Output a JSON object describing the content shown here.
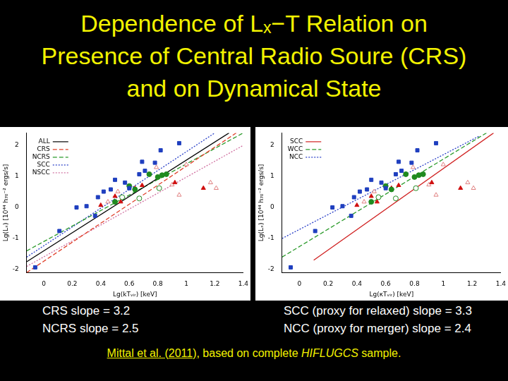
{
  "title": [
    "Dependence of Lₓ−T Relation on",
    "Presence of Central Radio Soure (CRS)",
    "and on Dynamical State"
  ],
  "chart_data": [
    {
      "type": "scatter",
      "x_label": "Lg(kTᵥᵢᵣ) [keV]",
      "y_label": "Lg(Lₓ) [10⁴⁴ h₇₀⁻² ergs/s]",
      "xlim": [
        -0.12,
        1.4
      ],
      "ylim": [
        -2.1,
        2.4
      ],
      "xticks": [
        0,
        0.2,
        0.4,
        0.6,
        0.8,
        1,
        1.2,
        1.4
      ],
      "yticks": [
        -2,
        -1,
        0,
        1,
        2
      ],
      "grid": false,
      "legend": "top-left",
      "series": [
        {
          "name": "ALL",
          "type": "line",
          "color": "#000000",
          "line_style": "solid",
          "x": [
            -0.12,
            1.3
          ],
          "values": [
            -1.75,
            2.4
          ]
        },
        {
          "name": "CRS",
          "type": "line",
          "color": "#e0402a",
          "line_style": "dashed",
          "x": [
            -0.12,
            1.35
          ],
          "values": [
            -2.1,
            2.4
          ]
        },
        {
          "name": "NCRS",
          "type": "line",
          "color": "#2a9a2a",
          "line_style": "dashed",
          "x": [
            -0.12,
            1.4
          ],
          "values": [
            -1.4,
            2.4
          ]
        },
        {
          "name": "SCC",
          "type": "line",
          "color": "#2a40c8",
          "line_style": "dotted",
          "x": [
            -0.12,
            1.2
          ],
          "values": [
            -1.6,
            2.4
          ]
        },
        {
          "name": "NSCC",
          "type": "line",
          "color": "#d070a0",
          "line_style": "dotted",
          "x": [
            -0.12,
            1.4
          ],
          "values": [
            -1.9,
            2.0
          ]
        },
        {
          "type": "scatter",
          "color": "#1f3fbf",
          "marker": "square",
          "x": [
            -0.06,
            0.11,
            0.23,
            0.3,
            0.36,
            0.38,
            0.42,
            0.47,
            0.5,
            0.57,
            0.6,
            0.67,
            0.69,
            0.71,
            0.78,
            0.82,
            0.95
          ],
          "values": [
            -1.93,
            -0.76,
            0.0,
            0.04,
            -0.27,
            0.33,
            0.51,
            0.58,
            0.89,
            0.8,
            0.62,
            1.07,
            1.47,
            1.18,
            1.44,
            1.84,
            2.07
          ]
        },
        {
          "type": "scatter",
          "color": "#1f8a1f",
          "marker": "circle",
          "x": [
            0.5,
            0.6,
            0.64,
            0.74,
            0.8,
            0.83,
            0.86
          ],
          "values": [
            0.18,
            0.69,
            0.58,
            1.07,
            0.98,
            1.04,
            1.07
          ]
        },
        {
          "type": "scatter",
          "color": "#1f8a1f",
          "marker": "open-circle",
          "x": [
            0.55,
            0.67,
            0.81
          ],
          "values": [
            0.33,
            0.29,
            0.62
          ]
        },
        {
          "type": "scatter",
          "color": "#d01010",
          "marker": "triangle",
          "x": [
            0.4,
            0.5,
            0.54,
            0.64,
            0.69,
            0.92,
            1.12
          ],
          "values": [
            0.07,
            0.36,
            0.18,
            0.62,
            0.71,
            0.8,
            0.62
          ]
        },
        {
          "type": "scatter",
          "color": "#e08080",
          "marker": "open-triangle",
          "x": [
            0.45,
            0.52,
            0.79,
            0.9,
            0.95,
            1.0,
            1.21,
            1.17
          ],
          "values": [
            0.18,
            0.51,
            1.29,
            0.73,
            0.4,
            1.38,
            0.62,
            0.8
          ]
        }
      ]
    },
    {
      "type": "scatter",
      "x_label": "Lg(κTᵥᵢᵣ) [keV]",
      "y_label": "Lg(Lₓ) [10⁴⁴ h₇₀⁻² ergs/s]",
      "xlim": [
        -0.12,
        1.4
      ],
      "ylim": [
        -2.1,
        2.4
      ],
      "xticks": [
        0,
        0.2,
        0.4,
        0.6,
        0.8,
        1,
        1.2,
        1.4
      ],
      "yticks": [
        -2,
        -1,
        0,
        1,
        2
      ],
      "grid": false,
      "legend": "top-left",
      "series": [
        {
          "name": "SCC",
          "type": "line",
          "color": "#d02020",
          "line_style": "solid",
          "x": [
            0.1,
            1.35
          ],
          "values": [
            -1.7,
            2.4
          ]
        },
        {
          "name": "WCC",
          "type": "line",
          "color": "#2a9a2a",
          "line_style": "dashed",
          "x": [
            -0.12,
            1.3
          ],
          "values": [
            -1.6,
            2.4
          ]
        },
        {
          "name": "NCC",
          "type": "line",
          "color": "#2a40c8",
          "line_style": "dotted",
          "x": [
            -0.12,
            1.25
          ],
          "values": [
            -1.0,
            2.3
          ]
        },
        {
          "type": "scatter",
          "color": "#1f3fbf",
          "marker": "square",
          "x": [
            -0.06,
            0.11,
            0.23,
            0.3,
            0.36,
            0.38,
            0.42,
            0.47,
            0.5,
            0.57,
            0.6,
            0.67,
            0.69,
            0.71,
            0.78,
            0.82,
            0.95
          ],
          "values": [
            -1.93,
            -0.76,
            0.0,
            0.04,
            -0.27,
            0.33,
            0.51,
            0.58,
            0.89,
            0.8,
            0.62,
            1.07,
            1.47,
            1.18,
            1.44,
            1.84,
            2.07
          ]
        },
        {
          "type": "scatter",
          "color": "#1f8a1f",
          "marker": "circle",
          "x": [
            0.5,
            0.6,
            0.64,
            0.74,
            0.8,
            0.83,
            0.86
          ],
          "values": [
            0.18,
            0.69,
            0.58,
            1.07,
            0.98,
            1.04,
            1.07
          ]
        },
        {
          "type": "scatter",
          "color": "#1f8a1f",
          "marker": "open-circle",
          "x": [
            0.55,
            0.67,
            0.81
          ],
          "values": [
            0.33,
            0.29,
            0.62
          ]
        },
        {
          "type": "scatter",
          "color": "#d01010",
          "marker": "triangle",
          "x": [
            0.4,
            0.5,
            0.54,
            0.64,
            0.69,
            0.92,
            1.12
          ],
          "values": [
            0.07,
            0.36,
            0.18,
            0.62,
            0.71,
            0.8,
            0.62
          ]
        },
        {
          "type": "scatter",
          "color": "#e08080",
          "marker": "open-triangle",
          "x": [
            0.45,
            0.52,
            0.79,
            0.9,
            0.95,
            1.0,
            1.21,
            1.17
          ],
          "values": [
            0.18,
            0.51,
            1.29,
            0.73,
            0.4,
            1.38,
            0.62,
            0.8
          ]
        }
      ]
    }
  ],
  "captions": [
    [
      "CRS slope = 3.2",
      "NCRS slope = 2.5"
    ],
    [
      "SCC (proxy for relaxed) slope = 3.3",
      "NCC (proxy for merger) slope = 2.4"
    ]
  ],
  "footer": [
    "Mittal et al. (2011)",
    ", based on complete ",
    "HIFLUGCS",
    " sample."
  ]
}
